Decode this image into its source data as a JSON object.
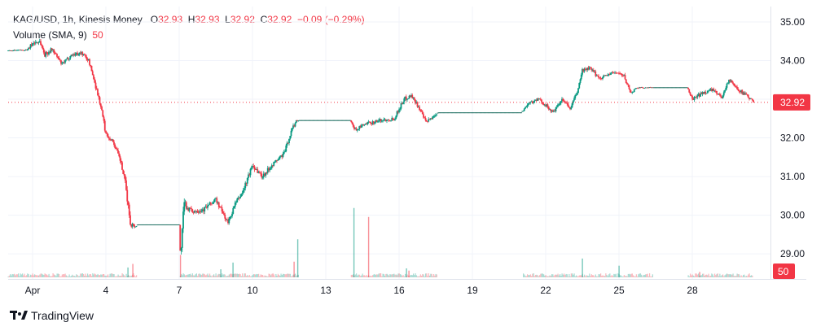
{
  "legend": {
    "symbol": "KAG/USD, 1h, Kinesis Money",
    "open_label": "O",
    "open": "32.93",
    "high_label": "H",
    "high": "32.93",
    "low_label": "L",
    "low": "32.92",
    "close_label": "C",
    "close": "32.92",
    "change": "−0.09 (−0.29%)",
    "volume_name": "Volume (SMA, 9)",
    "volume_value": "50"
  },
  "branding": {
    "name": "TradingView"
  },
  "colors": {
    "up": "#089981",
    "down": "#f23645",
    "grid": "#f0f3fa",
    "text": "#131722"
  },
  "chart_data": {
    "type": "candlestick",
    "title": "KAG/USD, 1h, Kinesis Money",
    "ylim": [
      28.35,
      35.4
    ],
    "y_ticks": [
      "35.00",
      "34.00",
      "33.00",
      "32.00",
      "31.00",
      "30.00",
      "29.00"
    ],
    "x_range": [
      0,
      31.2
    ],
    "x_ticks": [
      {
        "label": "Apr",
        "day": 1
      },
      {
        "label": "4",
        "day": 4
      },
      {
        "label": "7",
        "day": 7
      },
      {
        "label": "10",
        "day": 10
      },
      {
        "label": "13",
        "day": 13
      },
      {
        "label": "16",
        "day": 16
      },
      {
        "label": "19",
        "day": 19
      },
      {
        "label": "22",
        "day": 22
      },
      {
        "label": "25",
        "day": 25
      },
      {
        "label": "28",
        "day": 28
      }
    ],
    "last_price": "32.92",
    "last_volume": "50",
    "price_path": [
      [
        0.0,
        34.25,
        0.05
      ],
      [
        0.8,
        34.28,
        0.05
      ],
      [
        1.0,
        34.45,
        0.2
      ],
      [
        1.3,
        34.5,
        0.2
      ],
      [
        1.5,
        34.15,
        0.2
      ],
      [
        1.8,
        34.3,
        0.15
      ],
      [
        2.2,
        33.9,
        0.15
      ],
      [
        2.6,
        34.15,
        0.15
      ],
      [
        3.0,
        34.2,
        0.15
      ],
      [
        3.3,
        34.0,
        0.15
      ],
      [
        3.6,
        33.3,
        0.2
      ],
      [
        3.8,
        32.8,
        0.2
      ],
      [
        4.0,
        32.1,
        0.2
      ],
      [
        4.3,
        31.9,
        0.15
      ],
      [
        4.6,
        31.4,
        0.2
      ],
      [
        4.8,
        30.8,
        0.3
      ],
      [
        5.0,
        29.8,
        0.3
      ],
      [
        5.2,
        29.7,
        0.1
      ],
      [
        5.3,
        29.75,
        0.02
      ],
      [
        7.0,
        29.75,
        0.02
      ],
      [
        7.05,
        28.9,
        0.3
      ],
      [
        7.2,
        30.3,
        0.4
      ],
      [
        7.5,
        30.1,
        0.2
      ],
      [
        8.0,
        30.15,
        0.2
      ],
      [
        8.5,
        30.4,
        0.2
      ],
      [
        9.0,
        29.8,
        0.2
      ],
      [
        9.3,
        30.3,
        0.2
      ],
      [
        9.6,
        30.6,
        0.2
      ],
      [
        10.0,
        31.3,
        0.2
      ],
      [
        10.4,
        31.0,
        0.2
      ],
      [
        10.8,
        31.3,
        0.15
      ],
      [
        11.3,
        31.6,
        0.2
      ],
      [
        11.6,
        32.2,
        0.2
      ],
      [
        11.8,
        32.45,
        0.1
      ],
      [
        11.9,
        32.45,
        0.02
      ],
      [
        14.0,
        32.45,
        0.02
      ],
      [
        14.2,
        32.2,
        0.15
      ],
      [
        14.6,
        32.35,
        0.15
      ],
      [
        15.2,
        32.45,
        0.15
      ],
      [
        15.8,
        32.5,
        0.15
      ],
      [
        16.2,
        33.0,
        0.2
      ],
      [
        16.5,
        33.1,
        0.15
      ],
      [
        16.8,
        32.8,
        0.15
      ],
      [
        17.1,
        32.4,
        0.15
      ],
      [
        17.5,
        32.6,
        0.12
      ],
      [
        17.6,
        32.65,
        0.02
      ],
      [
        21.0,
        32.65,
        0.02
      ],
      [
        21.3,
        32.9,
        0.15
      ],
      [
        21.7,
        33.0,
        0.15
      ],
      [
        22.0,
        32.85,
        0.15
      ],
      [
        22.3,
        32.65,
        0.15
      ],
      [
        22.7,
        33.0,
        0.15
      ],
      [
        23.0,
        32.75,
        0.15
      ],
      [
        23.3,
        33.2,
        0.15
      ],
      [
        23.5,
        33.75,
        0.15
      ],
      [
        23.8,
        33.8,
        0.15
      ],
      [
        24.2,
        33.55,
        0.15
      ],
      [
        24.6,
        33.65,
        0.15
      ],
      [
        24.9,
        33.7,
        0.15
      ],
      [
        25.2,
        33.6,
        0.15
      ],
      [
        25.5,
        33.15,
        0.15
      ],
      [
        25.7,
        33.3,
        0.05
      ],
      [
        27.8,
        33.3,
        0.02
      ],
      [
        28.0,
        33.0,
        0.15
      ],
      [
        28.4,
        33.15,
        0.15
      ],
      [
        28.8,
        33.25,
        0.15
      ],
      [
        29.2,
        33.05,
        0.15
      ],
      [
        29.5,
        33.5,
        0.15
      ],
      [
        29.8,
        33.3,
        0.15
      ],
      [
        30.1,
        33.15,
        0.15
      ],
      [
        30.4,
        33.0,
        0.12
      ],
      [
        30.5,
        32.92,
        0.05
      ]
    ],
    "volume_spikes": [
      [
        4.9,
        0.22,
        "up"
      ],
      [
        5.1,
        0.3,
        "down"
      ],
      [
        7.05,
        0.5,
        "down"
      ],
      [
        8.7,
        0.18,
        "up"
      ],
      [
        9.2,
        0.33,
        "up"
      ],
      [
        11.7,
        0.35,
        "down"
      ],
      [
        11.85,
        0.85,
        "up"
      ],
      [
        14.15,
        1.55,
        "up"
      ],
      [
        14.75,
        1.35,
        "down"
      ],
      [
        16.3,
        0.2,
        "up"
      ],
      [
        16.4,
        0.15,
        "down"
      ],
      [
        23.5,
        0.42,
        "up"
      ],
      [
        25.0,
        0.26,
        "up"
      ],
      [
        28.3,
        0.12,
        "down"
      ]
    ]
  }
}
